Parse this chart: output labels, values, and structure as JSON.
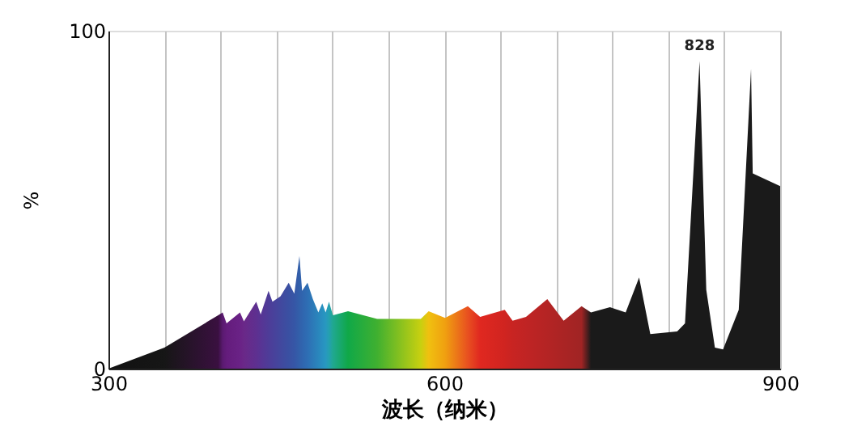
{
  "chart_data": {
    "type": "area",
    "xlabel": "波长（纳米）",
    "ylabel": "%",
    "xlim": [
      300,
      900
    ],
    "ylim": [
      0,
      100
    ],
    "xticks": [
      300,
      {
        "value": 350,
        "label": null
      },
      {
        "value": 400,
        "label": null
      },
      {
        "value": 450,
        "label": null
      },
      {
        "value": 500,
        "label": null
      },
      {
        "value": 550,
        "label": null
      },
      600,
      {
        "value": 650,
        "label": null
      },
      {
        "value": 700,
        "label": null
      },
      {
        "value": 750,
        "label": null
      },
      {
        "value": 800,
        "label": null
      },
      {
        "value": 850,
        "label": null
      },
      900
    ],
    "yticks": [
      0,
      100
    ],
    "grid": "x",
    "annotations": [
      {
        "text": "828",
        "x": 828,
        "y": 91
      }
    ],
    "series": [
      {
        "x": [
          300,
          350,
          398,
          402,
          405.5,
          417.5,
          421,
          432,
          436,
          443,
          446.5,
          453.7,
          461,
          466,
          470.6,
          473,
          477.8,
          482.6,
          487.5,
          491,
          494,
          497,
          500.5,
          514,
          540,
          579,
          586,
          600.7,
          621,
          632,
          654,
          661,
          673,
          692,
          706.6,
          722.6,
          731,
          748,
          762,
          774,
          784,
          808,
          815,
          828,
          834,
          841.7,
          849,
          863,
          874,
          875.5,
          900
        ],
        "values": [
          0,
          6.2,
          15.8,
          16.6,
          13.4,
          16.6,
          14,
          19.8,
          16,
          23,
          19.8,
          21.4,
          25.4,
          22.2,
          33.3,
          23,
          25.4,
          20.6,
          16.6,
          19.3,
          16.6,
          19.8,
          15.8,
          17,
          14.7,
          14.7,
          17,
          15,
          18.5,
          15.3,
          17.4,
          14.2,
          15.3,
          20.6,
          14.2,
          18.5,
          16.6,
          18.2,
          16.6,
          27,
          10.2,
          11,
          13.4,
          91,
          23.3,
          6.2,
          5.7,
          17.4,
          88.7,
          57.8,
          54
        ],
        "colors": [
          "#111111",
          "#161616",
          "#3a1040",
          "#5a1a70",
          "#641c7c",
          "#6a2286",
          "#6a2888",
          "#5e3090",
          "#583494",
          "#4e3c98",
          "#4a409a",
          "#42489e",
          "#3a50a2",
          "#3656a6",
          "#3260aa",
          "#3064ae",
          "#2e6eb4",
          "#2c7ab8",
          "#2a86bc",
          "#2890c0",
          "#2898c0",
          "#24a0b0",
          "#20a890",
          "#10a848",
          "#40b030",
          "#c8d010",
          "#f0c010",
          "#f0a010",
          "#e85020",
          "#e02820",
          "#d02420",
          "#c82422",
          "#c02424",
          "#b42424",
          "#aa2424",
          "#a02424",
          "#1a1a1a",
          "#1a1a1a",
          "#1a1a1a",
          "#1a1a1a",
          "#1a1a1a",
          "#1a1a1a",
          "#1a1a1a",
          "#1a1a1a",
          "#1a1a1a",
          "#1a1a1a",
          "#1a1a1a",
          "#1a1a1a",
          "#1a1a1a",
          "#1a1a1a",
          "#1a1a1a"
        ]
      }
    ]
  }
}
